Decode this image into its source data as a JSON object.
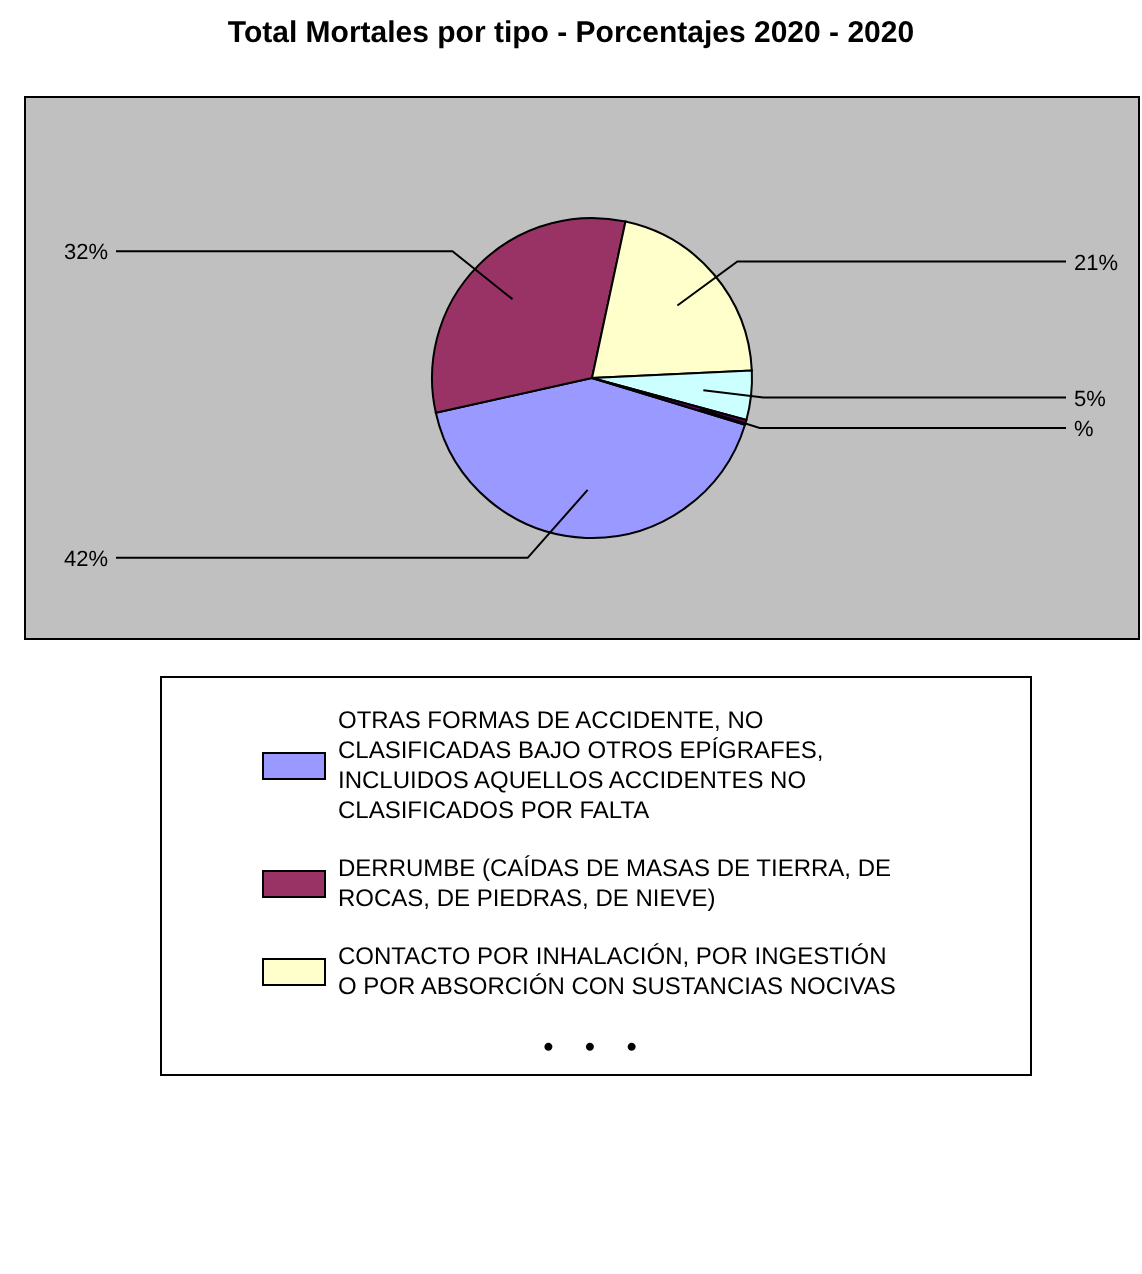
{
  "chart_data": {
    "type": "pie",
    "title": "Total Mortales por tipo - Porcentajes 2020 - 2020",
    "categories": [
      "OTRAS FORMAS DE ACCIDENTE, NO CLASIFICADAS BAJO OTROS EPÍGRAFES, INCLUIDOS AQUELLOS ACCIDENTES NO CLASIFICADOS POR FALTA",
      "DERRUMBE (CAÍDAS DE MASAS DE TIERRA, DE ROCAS, DE PIEDRAS, DE NIEVE)",
      "CONTACTO POR INHALACIÓN, POR INGESTIÓN O POR ABSORCIÓN CON SUSTANCIAS NOCIVAS",
      null,
      null
    ],
    "values": [
      42,
      32,
      21,
      5,
      0.5
    ],
    "value_labels": [
      "42%",
      "32%",
      "21%",
      "5%",
      "%"
    ],
    "colors": [
      "#9999ff",
      "#993366",
      "#ffffcc",
      "#ccffff",
      "#660066"
    ],
    "legend": "bottom",
    "annotations": [
      "• • •"
    ]
  }
}
